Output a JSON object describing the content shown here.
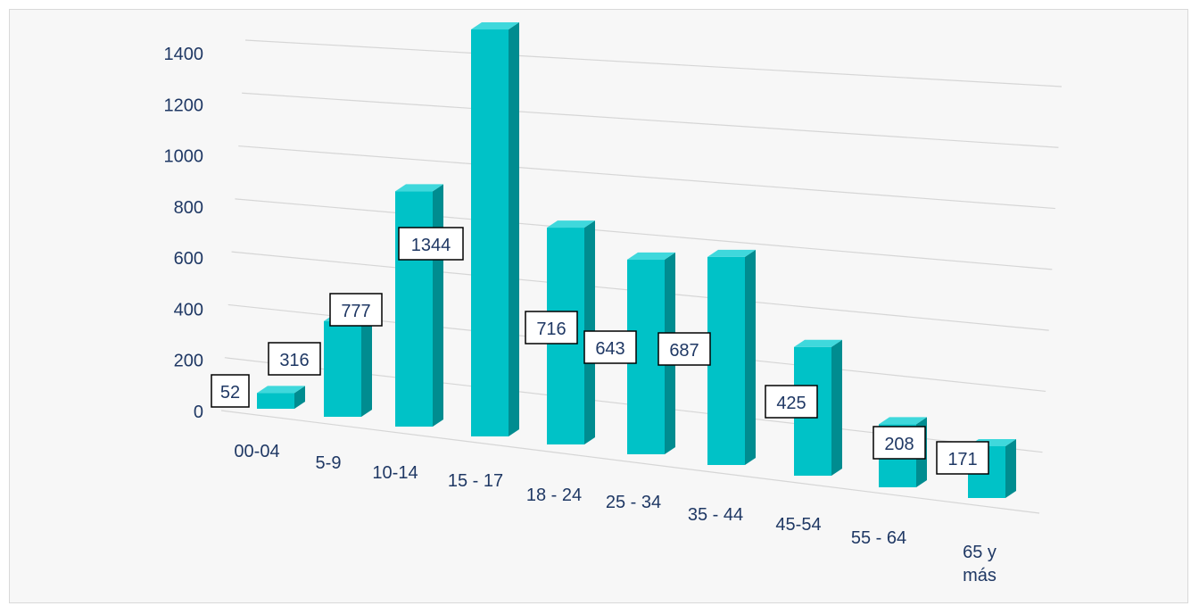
{
  "chart_data": {
    "type": "bar",
    "style": "3d-perspective-column",
    "categories": [
      "00-04",
      "5-9",
      "10-14",
      "15 - 17",
      "18 - 24",
      "25 - 34",
      "35 - 44",
      "45-54",
      "55 - 64",
      "65 y más"
    ],
    "values": [
      52,
      316,
      777,
      1344,
      716,
      643,
      687,
      425,
      208,
      171
    ],
    "title": "",
    "xlabel": "",
    "ylabel": "",
    "ylim": [
      0,
      1400
    ],
    "yticks": [
      "0",
      "200",
      "400",
      "600",
      "800",
      "1000",
      "1200",
      "1400"
    ],
    "grid": true,
    "legend": "none",
    "colors": {
      "bar_front": "#00c2c7",
      "bar_side": "#008c90",
      "bar_top": "#3fd8dc",
      "axis_text": "#1f3864",
      "gridline": "#d6d6d6",
      "background": "#f7f7f7"
    }
  }
}
